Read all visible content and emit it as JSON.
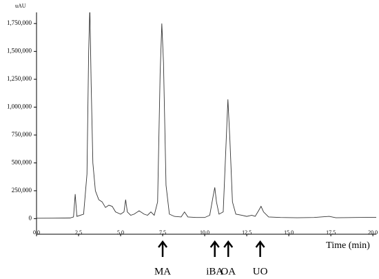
{
  "chart_data": {
    "type": "line",
    "y_axis_label": "uAU",
    "x_axis_label": "Time (min)",
    "xlim": [
      0,
      20.2
    ],
    "ylim": [
      -140000,
      1850000
    ],
    "xticks": [
      {
        "value": 0,
        "label": "0.0"
      },
      2.5,
      {
        "value": 5,
        "label": "5.0"
      },
      7.5,
      {
        "value": 10,
        "label": "10.0"
      },
      12.5,
      {
        "value": 15,
        "label": "15.0"
      },
      17.5,
      {
        "value": 20,
        "label": "20.0"
      }
    ],
    "yticks": [
      0,
      {
        "value": 250000,
        "label": "250,000"
      },
      {
        "value": 500000,
        "label": "500,000"
      },
      {
        "value": 750000,
        "label": "750,000"
      },
      {
        "value": 1000000,
        "label": "1,000,000"
      },
      {
        "value": 1250000,
        "label": "1,250,000"
      },
      {
        "value": 1500000,
        "label": "1,500,000"
      },
      {
        "value": 1750000,
        "label": "1,750,000"
      }
    ],
    "series": [
      {
        "color": "#333333",
        "x": [
          0,
          1.0,
          2.0,
          2.2,
          2.3,
          2.4,
          2.8,
          3.0,
          3.1,
          3.17,
          3.25,
          3.35,
          3.5,
          3.7,
          3.9,
          4.1,
          4.3,
          4.5,
          4.7,
          5.0,
          5.2,
          5.3,
          5.4,
          5.6,
          5.8,
          6.1,
          6.4,
          6.6,
          6.8,
          7.0,
          7.2,
          7.35,
          7.45,
          7.55,
          7.7,
          7.9,
          8.2,
          8.6,
          8.8,
          9.0,
          9.5,
          10.0,
          10.3,
          10.5,
          10.6,
          10.7,
          10.85,
          11.1,
          11.25,
          11.38,
          11.5,
          11.65,
          11.85,
          12.2,
          12.5,
          12.8,
          13.0,
          13.2,
          13.35,
          13.5,
          13.8,
          14.5,
          15.5,
          16.5,
          17.4,
          17.8,
          19.0,
          20.2
        ],
        "values": [
          3000,
          4000,
          6000,
          15000,
          220000,
          20000,
          40000,
          400000,
          1500000,
          1900000,
          1200000,
          500000,
          250000,
          170000,
          150000,
          100000,
          120000,
          110000,
          60000,
          40000,
          60000,
          170000,
          60000,
          30000,
          40000,
          70000,
          40000,
          30000,
          60000,
          30000,
          150000,
          1300000,
          1750000,
          1400000,
          300000,
          40000,
          20000,
          15000,
          60000,
          15000,
          10000,
          10000,
          30000,
          200000,
          280000,
          150000,
          40000,
          60000,
          600000,
          1070000,
          700000,
          150000,
          40000,
          30000,
          20000,
          30000,
          20000,
          70000,
          110000,
          60000,
          15000,
          10000,
          8000,
          10000,
          20000,
          8000,
          10000,
          12000
        ]
      }
    ],
    "annotations": [
      {
        "text": "MA",
        "x": 7.5
      },
      {
        "text": "iBA",
        "x": 10.6
      },
      {
        "text": "OA",
        "x": 11.4
      },
      {
        "text": "UO",
        "x": 13.3
      }
    ]
  }
}
